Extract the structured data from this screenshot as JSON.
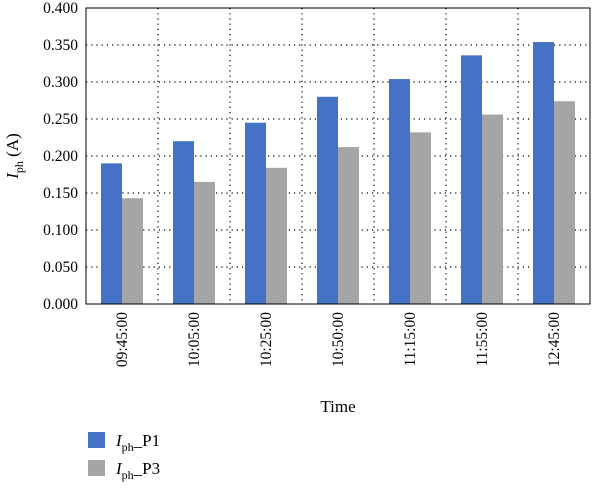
{
  "chart_data": {
    "type": "bar",
    "categories": [
      "09:45:00",
      "10:05:00",
      "10:25:00",
      "10:50:00",
      "11:15:00",
      "11:55:00",
      "12:45:00"
    ],
    "series": [
      {
        "name": "I_ph_P1",
        "name_main": "I",
        "name_sub": "ph",
        "name_suffix": "_P1",
        "color": "#4472C4",
        "values": [
          0.19,
          0.22,
          0.245,
          0.28,
          0.304,
          0.336,
          0.354
        ]
      },
      {
        "name": "I_ph_P3",
        "name_main": "I",
        "name_sub": "ph",
        "name_suffix": "_P3",
        "color": "#A5A5A5",
        "values": [
          0.143,
          0.165,
          0.184,
          0.212,
          0.232,
          0.256,
          0.274
        ]
      }
    ],
    "xlabel": "Time",
    "ylabel_main": "I",
    "ylabel_sub": "ph",
    "ylabel_unit": " (A)",
    "ylim": [
      0,
      0.4
    ],
    "yticks": [
      "0.000",
      "0.050",
      "0.100",
      "0.150",
      "0.200",
      "0.250",
      "0.300",
      "0.350",
      "0.400"
    ],
    "grid": true,
    "legend_position": "bottom-left"
  }
}
